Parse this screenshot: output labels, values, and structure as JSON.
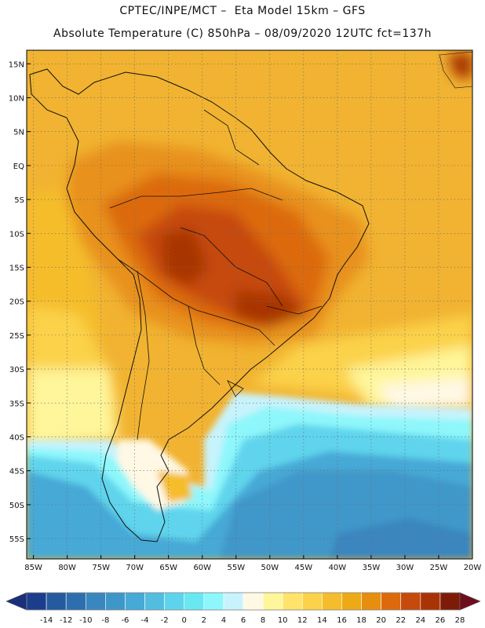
{
  "header": {
    "title_line1": "CPTEC/INPE/MCT –  Eta Model 15km – GFS",
    "title_line2": "Absolute Temperature (C) 850hPa – 08/09/2020 12UTC fct=137h"
  },
  "axes": {
    "lat_labels": [
      "15N",
      "10N",
      "5N",
      "EQ",
      "5S",
      "10S",
      "15S",
      "20S",
      "25S",
      "30S",
      "35S",
      "40S",
      "45S",
      "50S",
      "55S"
    ],
    "lon_labels": [
      "85W",
      "80W",
      "75W",
      "70W",
      "65W",
      "60W",
      "55W",
      "50W",
      "45W",
      "40W",
      "35W",
      "30W",
      "25W",
      "20W"
    ],
    "lat_range": [
      17,
      -58
    ],
    "lon_range": [
      -86,
      -20
    ]
  },
  "colorbar": {
    "labels": [
      "-14",
      "-12",
      "-10",
      "-8",
      "-6",
      "-4",
      "-2",
      "0",
      "2",
      "4",
      "6",
      "8",
      "10",
      "12",
      "14",
      "16",
      "18",
      "20",
      "22",
      "24",
      "26",
      "28"
    ],
    "colors": [
      "#1a3d8c",
      "#245a9e",
      "#2d6fae",
      "#3a86bf",
      "#3f97c9",
      "#47a9d6",
      "#53bde0",
      "#5ed4ec",
      "#6ae8f2",
      "#8ef7fb",
      "#c8f3fc",
      "#fff8e4",
      "#fff59a",
      "#ffe36a",
      "#fbd24a",
      "#f5bd2b",
      "#eeaa16",
      "#e68e10",
      "#dc6a0c",
      "#c64a0a",
      "#a83406",
      "#7c1c06"
    ],
    "under_color": "#1a2e7a",
    "over_color": "#6e0e1c"
  },
  "map_fields": {
    "background": "#f1b331",
    "warm_core": "#c9520e",
    "cold_ocean": "#53b4d8"
  }
}
